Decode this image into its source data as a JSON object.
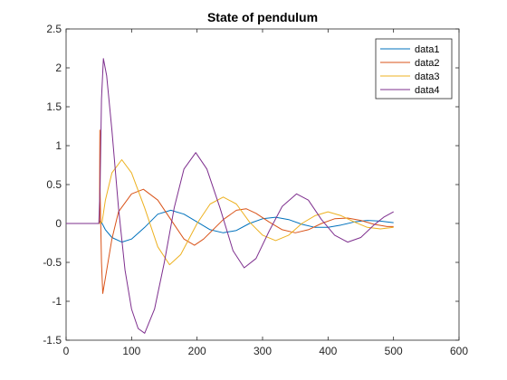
{
  "chart_data": {
    "type": "line",
    "title": "State of pendulum",
    "xlabel": "",
    "ylabel": "",
    "xlim": [
      0,
      600
    ],
    "ylim": [
      -1.5,
      2.5
    ],
    "xticks": [
      "0",
      "100",
      "200",
      "300",
      "400",
      "500",
      "600"
    ],
    "yticks": [
      "-1.5",
      "-1",
      "-0.5",
      "0",
      "0.5",
      "1",
      "1.5",
      "2",
      "2.5"
    ],
    "grid": false,
    "legend_position": "top-right",
    "series": [
      {
        "name": "data1",
        "color": "#0072bd",
        "points": [
          [
            0,
            0
          ],
          [
            50,
            0
          ],
          [
            52,
            0.03
          ],
          [
            55,
            0
          ],
          [
            60,
            -0.08
          ],
          [
            70,
            -0.18
          ],
          [
            85,
            -0.24
          ],
          [
            100,
            -0.2
          ],
          [
            120,
            -0.05
          ],
          [
            140,
            0.12
          ],
          [
            160,
            0.17
          ],
          [
            180,
            0.12
          ],
          [
            200,
            0.02
          ],
          [
            220,
            -0.08
          ],
          [
            240,
            -0.12
          ],
          [
            260,
            -0.09
          ],
          [
            280,
            0
          ],
          [
            300,
            0.06
          ],
          [
            320,
            0.08
          ],
          [
            340,
            0.05
          ],
          [
            360,
            -0.01
          ],
          [
            380,
            -0.05
          ],
          [
            400,
            -0.05
          ],
          [
            420,
            -0.02
          ],
          [
            440,
            0.02
          ],
          [
            460,
            0.04
          ],
          [
            480,
            0.03
          ],
          [
            500,
            0.01
          ]
        ]
      },
      {
        "name": "data2",
        "color": "#d95319",
        "points": [
          [
            0,
            0
          ],
          [
            51,
            0
          ],
          [
            51.5,
            1.2
          ],
          [
            52,
            0.4
          ],
          [
            54,
            -0.5
          ],
          [
            56,
            -0.9
          ],
          [
            60,
            -0.7
          ],
          [
            70,
            -0.2
          ],
          [
            80,
            0.15
          ],
          [
            100,
            0.38
          ],
          [
            118,
            0.44
          ],
          [
            140,
            0.3
          ],
          [
            160,
            0.05
          ],
          [
            180,
            -0.2
          ],
          [
            196,
            -0.28
          ],
          [
            210,
            -0.2
          ],
          [
            240,
            0.05
          ],
          [
            260,
            0.17
          ],
          [
            275,
            0.19
          ],
          [
            290,
            0.13
          ],
          [
            310,
            0.02
          ],
          [
            330,
            -0.08
          ],
          [
            350,
            -0.12
          ],
          [
            370,
            -0.08
          ],
          [
            390,
            0
          ],
          [
            410,
            0.06
          ],
          [
            430,
            0.07
          ],
          [
            450,
            0.04
          ],
          [
            470,
            -0.01
          ],
          [
            490,
            -0.04
          ],
          [
            500,
            -0.04
          ]
        ]
      },
      {
        "name": "data3",
        "color": "#edb120",
        "points": [
          [
            0,
            0
          ],
          [
            50,
            0
          ],
          [
            55,
            0.02
          ],
          [
            60,
            0.3
          ],
          [
            70,
            0.65
          ],
          [
            85,
            0.82
          ],
          [
            100,
            0.65
          ],
          [
            120,
            0.2
          ],
          [
            140,
            -0.3
          ],
          [
            158,
            -0.53
          ],
          [
            175,
            -0.4
          ],
          [
            200,
            0
          ],
          [
            220,
            0.25
          ],
          [
            240,
            0.34
          ],
          [
            260,
            0.25
          ],
          [
            280,
            0.02
          ],
          [
            300,
            -0.15
          ],
          [
            320,
            -0.22
          ],
          [
            340,
            -0.15
          ],
          [
            360,
            0
          ],
          [
            380,
            0.1
          ],
          [
            400,
            0.15
          ],
          [
            420,
            0.1
          ],
          [
            440,
            0.02
          ],
          [
            460,
            -0.05
          ],
          [
            480,
            -0.07
          ],
          [
            500,
            -0.05
          ]
        ]
      },
      {
        "name": "data4",
        "color": "#7e2f8e",
        "points": [
          [
            0,
            0
          ],
          [
            50,
            0
          ],
          [
            52,
            0.5
          ],
          [
            54,
            1.6
          ],
          [
            57,
            2.12
          ],
          [
            62,
            1.9
          ],
          [
            70,
            1.2
          ],
          [
            80,
            0.2
          ],
          [
            90,
            -0.6
          ],
          [
            100,
            -1.1
          ],
          [
            110,
            -1.35
          ],
          [
            120,
            -1.41
          ],
          [
            135,
            -1.1
          ],
          [
            150,
            -0.5
          ],
          [
            165,
            0.2
          ],
          [
            180,
            0.7
          ],
          [
            198,
            0.91
          ],
          [
            215,
            0.7
          ],
          [
            235,
            0.2
          ],
          [
            255,
            -0.35
          ],
          [
            272,
            -0.57
          ],
          [
            290,
            -0.45
          ],
          [
            310,
            -0.1
          ],
          [
            330,
            0.22
          ],
          [
            352,
            0.38
          ],
          [
            370,
            0.3
          ],
          [
            390,
            0.05
          ],
          [
            410,
            -0.15
          ],
          [
            430,
            -0.24
          ],
          [
            450,
            -0.18
          ],
          [
            470,
            -0.02
          ],
          [
            485,
            0.08
          ],
          [
            500,
            0.15
          ]
        ]
      }
    ]
  }
}
